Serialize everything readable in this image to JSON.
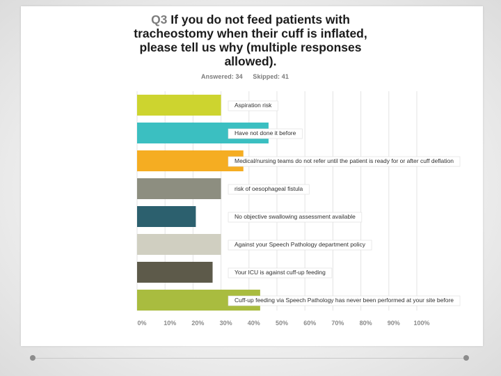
{
  "title": {
    "prefix": "Q3",
    "lines": [
      "If you do not feed patients with",
      "tracheostomy when their cuff is inflated,",
      "please tell us why (multiple responses",
      "allowed)."
    ]
  },
  "stats": {
    "answered": "Answered: 34",
    "skipped": "Skipped: 41"
  },
  "chart_data": {
    "type": "bar",
    "orientation": "horizontal",
    "categories": [
      "Aspiration risk",
      "Have not done it before",
      "Medical/nursing teams do not refer until the patient is ready for or after cuff deflation",
      "risk of oesophageal fistula",
      "No objective swallowing assessment available",
      "Against your Speech Pathology department policy",
      "Your ICU is against cuff-up feeding",
      "Cuff-up feeding via Speech Pathology has never been performed at your site before"
    ],
    "values": [
      30,
      47,
      38,
      30,
      21,
      30,
      27,
      44
    ],
    "colors": [
      "#cdd42f",
      "#3bbfc1",
      "#f5ad22",
      "#8d8e80",
      "#2c606e",
      "#d0cfc1",
      "#5d5a4a",
      "#a9bc3f"
    ],
    "x_tick_labels": [
      "0%",
      "10%",
      "20%",
      "30%",
      "40%",
      "50%",
      "60%",
      "70%",
      "80%",
      "90%",
      "100%"
    ],
    "xlim": [
      0,
      100
    ],
    "grid": true
  }
}
